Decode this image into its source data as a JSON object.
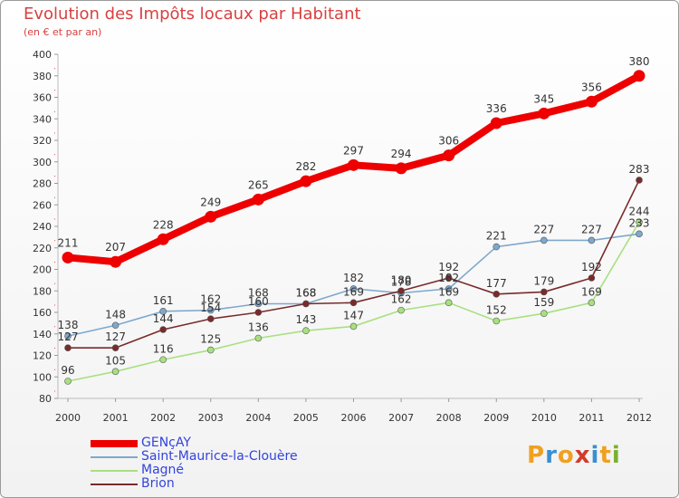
{
  "title": "Evolution des Impôts locaux par Habitant",
  "subtitle": "(en € et par an)",
  "logo": {
    "text": "Proxiti",
    "letters": [
      "P",
      "r",
      "o",
      "x",
      "i",
      "t",
      "i"
    ],
    "colors": [
      "#f0a020",
      "#3a8fd0",
      "#f0a020",
      "#d23a2a",
      "#3a8fd0",
      "#f0a020",
      "#7ab030"
    ]
  },
  "chart_data": {
    "type": "line",
    "title": "Evolution des Impôts locaux par Habitant",
    "subtitle": "(en € et par an)",
    "xlabel": "",
    "ylabel": "",
    "x": [
      "2000",
      "2001",
      "2002",
      "2003",
      "2004",
      "2005",
      "2006",
      "2007",
      "2008",
      "2009",
      "2010",
      "2011",
      "2012"
    ],
    "ylim": [
      80,
      400
    ],
    "yticks": [
      80,
      100,
      120,
      140,
      160,
      180,
      200,
      220,
      240,
      260,
      280,
      300,
      320,
      340,
      360,
      380,
      400
    ],
    "grid": false,
    "legend_position": "bottom-left",
    "series": [
      {
        "name": "GENçAY",
        "color": "#ee0000",
        "values": [
          211,
          207,
          228,
          249,
          265,
          282,
          297,
          294,
          306,
          336,
          345,
          356,
          380
        ]
      },
      {
        "name": "Saint-Maurice-la-Clouère",
        "color": "#7ea8cc",
        "values": [
          138,
          148,
          161,
          162,
          168,
          168,
          182,
          178,
          182,
          221,
          227,
          227,
          233
        ]
      },
      {
        "name": "Magné",
        "color": "#a8e080",
        "values": [
          96,
          105,
          116,
          125,
          136,
          143,
          147,
          162,
          169,
          152,
          159,
          169,
          244
        ]
      },
      {
        "name": "Brion",
        "color": "#7a2a2a",
        "values": [
          127,
          127,
          144,
          154,
          160,
          168,
          169,
          180,
          192,
          177,
          179,
          192,
          283
        ]
      }
    ]
  }
}
